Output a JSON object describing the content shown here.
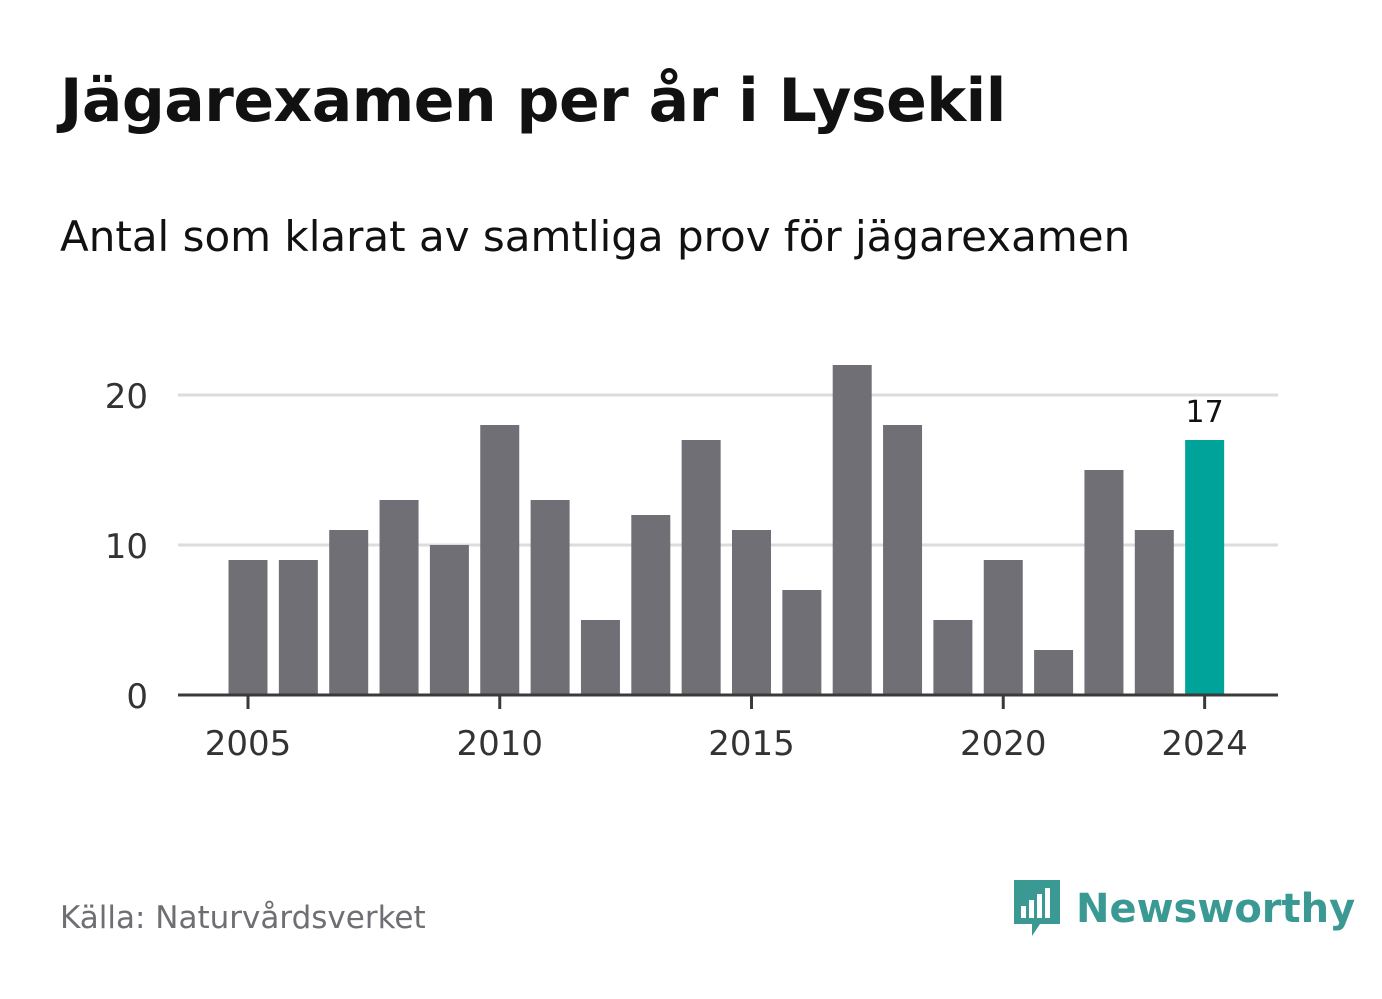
{
  "title": "Jägarexamen per år i Lysekil",
  "subtitle": "Antal som klarat av samtliga prov för jägarexamen",
  "source": "Källa: Naturvårdsverket",
  "brand": "Newsworthy",
  "colors": {
    "bar": "#706f75",
    "highlight": "#00a39a",
    "grid": "#dcdcdc",
    "axis": "#3a3a3a",
    "brand": "#3a9a93"
  },
  "chart_data": {
    "type": "bar",
    "categories": [
      2005,
      2006,
      2007,
      2008,
      2009,
      2010,
      2011,
      2012,
      2013,
      2014,
      2015,
      2016,
      2017,
      2018,
      2019,
      2020,
      2021,
      2022,
      2023,
      2024
    ],
    "values": [
      9,
      9,
      11,
      13,
      10,
      18,
      13,
      5,
      12,
      17,
      11,
      7,
      22,
      18,
      5,
      9,
      3,
      15,
      11,
      17
    ],
    "xticks": [
      2005,
      2010,
      2015,
      2020,
      2024
    ],
    "yticks": [
      0,
      10,
      20
    ],
    "ylim": [
      0,
      22
    ],
    "highlight_category": 2024,
    "highlight_label": "17",
    "grid": true
  }
}
